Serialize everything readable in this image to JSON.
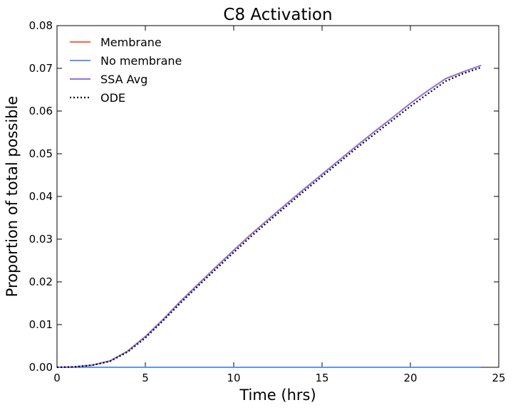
{
  "chart_data": {
    "type": "line",
    "title": "C8 Activation",
    "xlabel": "Time (hrs)",
    "ylabel": "Proportion of total possible",
    "xlim": [
      0,
      25
    ],
    "ylim": [
      0,
      0.08
    ],
    "xticks": [
      "0",
      "5",
      "10",
      "15",
      "20",
      "25"
    ],
    "yticks": [
      "0.00",
      "0.01",
      "0.02",
      "0.03",
      "0.04",
      "0.05",
      "0.06",
      "0.07",
      "0.08"
    ],
    "grid": false,
    "legend_position": "top-left",
    "series": [
      {
        "name": "Membrane",
        "color": "#ff6347",
        "style": "solid",
        "x": [
          0,
          24
        ],
        "y": [
          0,
          0
        ]
      },
      {
        "name": "No membrane",
        "color": "#6495ed",
        "style": "solid",
        "x": [
          0,
          24
        ],
        "y": [
          0,
          0
        ]
      },
      {
        "name": "SSA Avg",
        "color": "#9370db",
        "style": "solid",
        "x": [
          0,
          1,
          2,
          3,
          4,
          5,
          6,
          7,
          8,
          9,
          10,
          11,
          12,
          13,
          14,
          15,
          16,
          17,
          18,
          19,
          20,
          21,
          22,
          23,
          24
        ],
        "y": [
          0,
          0.0001,
          0.0005,
          0.0015,
          0.0038,
          0.0072,
          0.0112,
          0.0155,
          0.0195,
          0.0235,
          0.0274,
          0.0312,
          0.0348,
          0.0383,
          0.0418,
          0.0452,
          0.0486,
          0.052,
          0.0553,
          0.0585,
          0.0618,
          0.0648,
          0.0676,
          0.0692,
          0.0707
        ]
      },
      {
        "name": "ODE",
        "color": "#000000",
        "style": "dotted",
        "x": [
          0,
          1,
          2,
          3,
          4,
          5,
          6,
          7,
          8,
          9,
          10,
          11,
          12,
          13,
          14,
          15,
          16,
          17,
          18,
          19,
          20,
          21,
          22,
          23,
          24
        ],
        "y": [
          0,
          0.0001,
          0.0005,
          0.0014,
          0.0036,
          0.0069,
          0.0109,
          0.0151,
          0.0191,
          0.023,
          0.0269,
          0.0307,
          0.0343,
          0.0378,
          0.0413,
          0.0447,
          0.0481,
          0.0515,
          0.0547,
          0.0579,
          0.0611,
          0.0641,
          0.067,
          0.0688,
          0.0702
        ]
      }
    ]
  }
}
